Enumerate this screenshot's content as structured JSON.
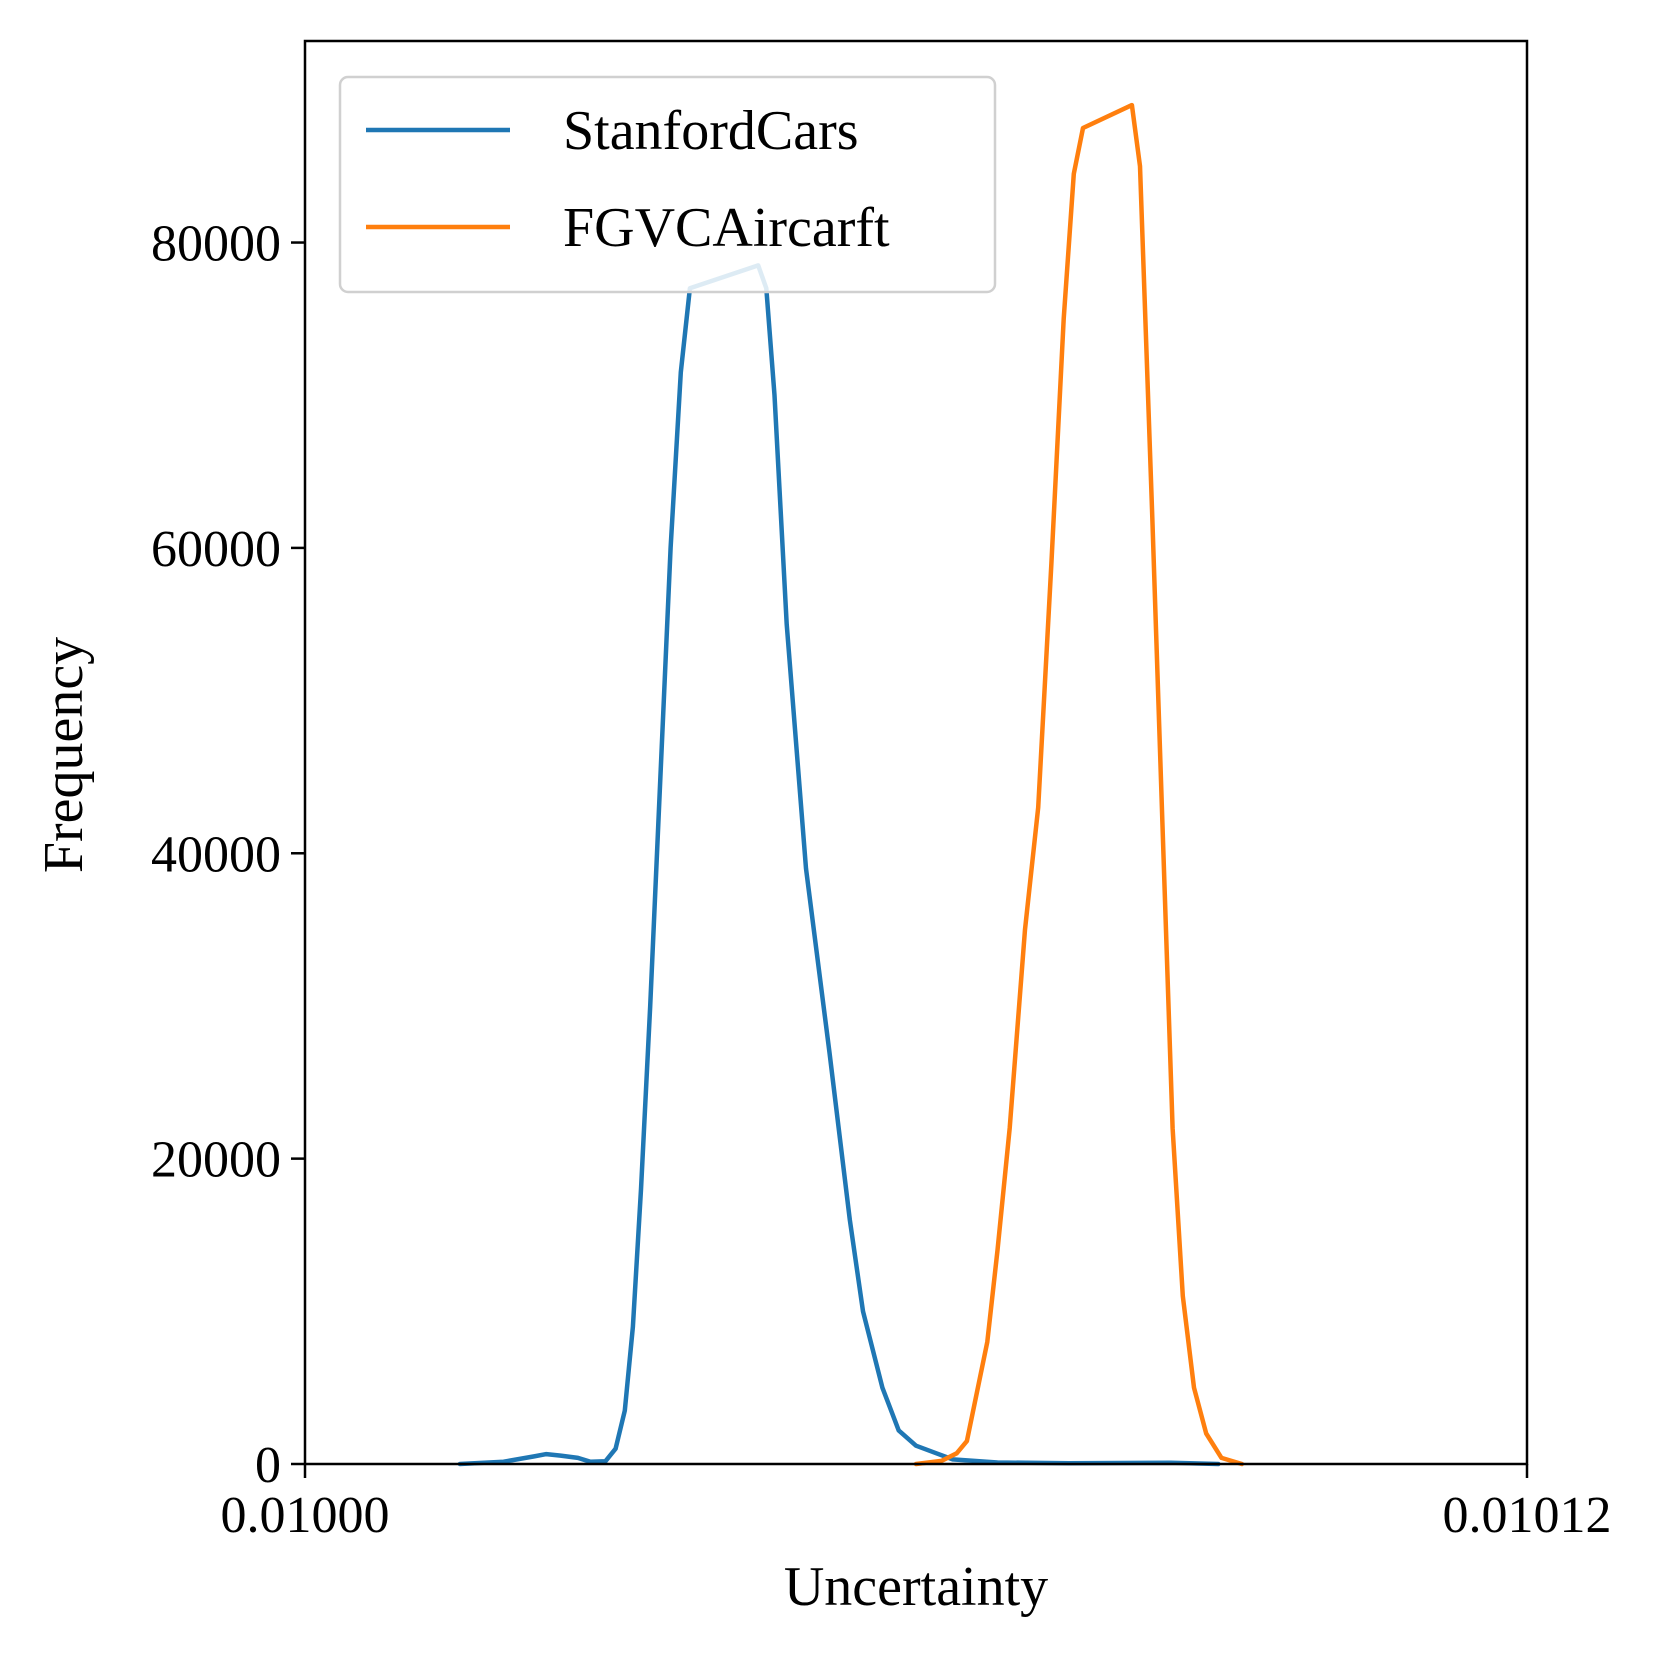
{
  "chart_data": {
    "type": "line",
    "title": "",
    "xlabel": "Uncertainty",
    "ylabel": "Frequency",
    "xlim": [
      0.01,
      0.01012
    ],
    "ylim": [
      0,
      93200
    ],
    "x_ticks": [
      {
        "value": 0.01,
        "label": "0.01000"
      },
      {
        "value": 0.01012,
        "label": "0.01012"
      }
    ],
    "y_ticks": [
      {
        "value": 0,
        "label": "0"
      },
      {
        "value": 20000,
        "label": "20000"
      },
      {
        "value": 40000,
        "label": "40000"
      },
      {
        "value": 60000,
        "label": "60000"
      },
      {
        "value": 80000,
        "label": "80000"
      }
    ],
    "grid": false,
    "legend_position": "top-left",
    "series": [
      {
        "name": "StanfordCars",
        "color": "#1f77b4",
        "points": [
          [
            0.0100152,
            0
          ],
          [
            0.0100195,
            150
          ],
          [
            0.0100225,
            500
          ],
          [
            0.0100237,
            650
          ],
          [
            0.0100251,
            550
          ],
          [
            0.0100268,
            400
          ],
          [
            0.010028,
            150
          ],
          [
            0.0100295,
            180
          ],
          [
            0.0100305,
            1000
          ],
          [
            0.0100314,
            3500
          ],
          [
            0.0100322,
            9000
          ],
          [
            0.010033,
            18000
          ],
          [
            0.0100339,
            30000
          ],
          [
            0.0100349,
            45000
          ],
          [
            0.0100359,
            60000
          ],
          [
            0.0100369,
            71500
          ],
          [
            0.0100378,
            77000
          ],
          [
            0.0100445,
            78500
          ],
          [
            0.0100453,
            77000
          ],
          [
            0.0100461,
            70000
          ],
          [
            0.0100473,
            55000
          ],
          [
            0.0100492,
            39000
          ],
          [
            0.0100515,
            27000
          ],
          [
            0.0100535,
            16000
          ],
          [
            0.0100548,
            10000
          ],
          [
            0.0100567,
            5000
          ],
          [
            0.0100583,
            2200
          ],
          [
            0.01006,
            1200
          ],
          [
            0.010062,
            700
          ],
          [
            0.0100636,
            300
          ],
          [
            0.010068,
            100
          ],
          [
            0.010075,
            50
          ],
          [
            0.010085,
            80
          ],
          [
            0.0100897,
            0
          ]
        ]
      },
      {
        "name": "FGVCAircarft",
        "color": "#ff7f0e",
        "points": [
          [
            0.01006,
            0
          ],
          [
            0.0100625,
            200
          ],
          [
            0.010064,
            700
          ],
          [
            0.010065,
            1500
          ],
          [
            0.010067,
            8000
          ],
          [
            0.010068,
            14000
          ],
          [
            0.0100692,
            22000
          ],
          [
            0.0100707,
            35000
          ],
          [
            0.010072,
            43000
          ],
          [
            0.0100733,
            59000
          ],
          [
            0.0100745,
            75000
          ],
          [
            0.0100755,
            84500
          ],
          [
            0.0100764,
            87500
          ],
          [
            0.0100812,
            89000
          ],
          [
            0.010082,
            85000
          ],
          [
            0.0100832,
            62000
          ],
          [
            0.0100842,
            42000
          ],
          [
            0.0100852,
            22000
          ],
          [
            0.0100862,
            11000
          ],
          [
            0.0100873,
            5000
          ],
          [
            0.0100885,
            2000
          ],
          [
            0.01009,
            400
          ],
          [
            0.010092,
            0
          ]
        ]
      }
    ]
  }
}
